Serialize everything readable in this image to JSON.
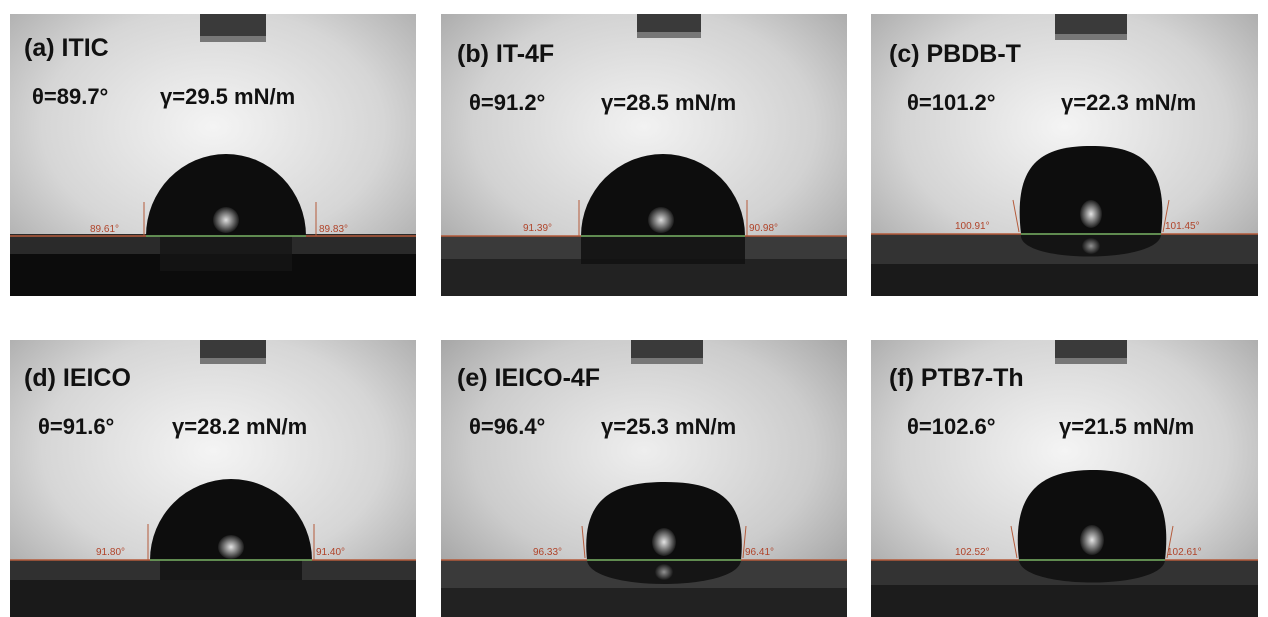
{
  "panels": [
    {
      "label": "(a) ITIC",
      "theta": "θ=89.7°",
      "gamma": "γ=29.5 mN/m",
      "angle_left": "89.61°",
      "angle_right": "89.83°"
    },
    {
      "label": "(b) IT-4F",
      "theta": "θ=91.2°",
      "gamma": "γ=28.5 mN/m",
      "angle_left": "91.39°",
      "angle_right": "90.98°"
    },
    {
      "label": "(c) PBDB-T",
      "theta": "θ=101.2°",
      "gamma": "γ=22.3 mN/m",
      "angle_left": "100.91°",
      "angle_right": "101.45°"
    },
    {
      "label": "(d) IEICO",
      "theta": "θ=91.6°",
      "gamma": "γ=28.2 mN/m",
      "angle_left": "91.80°",
      "angle_right": "91.40°"
    },
    {
      "label": "(e) IEICO-4F",
      "theta": "θ=96.4°",
      "gamma": "γ=25.3 mN/m",
      "angle_left": "96.33°",
      "angle_right": "96.41°"
    },
    {
      "label": "(f) PTB7-Th",
      "theta": "θ=102.6°",
      "gamma": "γ=21.5 mN/m",
      "angle_left": "102.52°",
      "angle_right": "102.61°"
    }
  ],
  "colors": {
    "baseline": "#b45a3a",
    "tangent": "#5fa85f",
    "angle_text": "#b0442a"
  },
  "icons": {
    "needle": "syringe-needle-icon"
  }
}
